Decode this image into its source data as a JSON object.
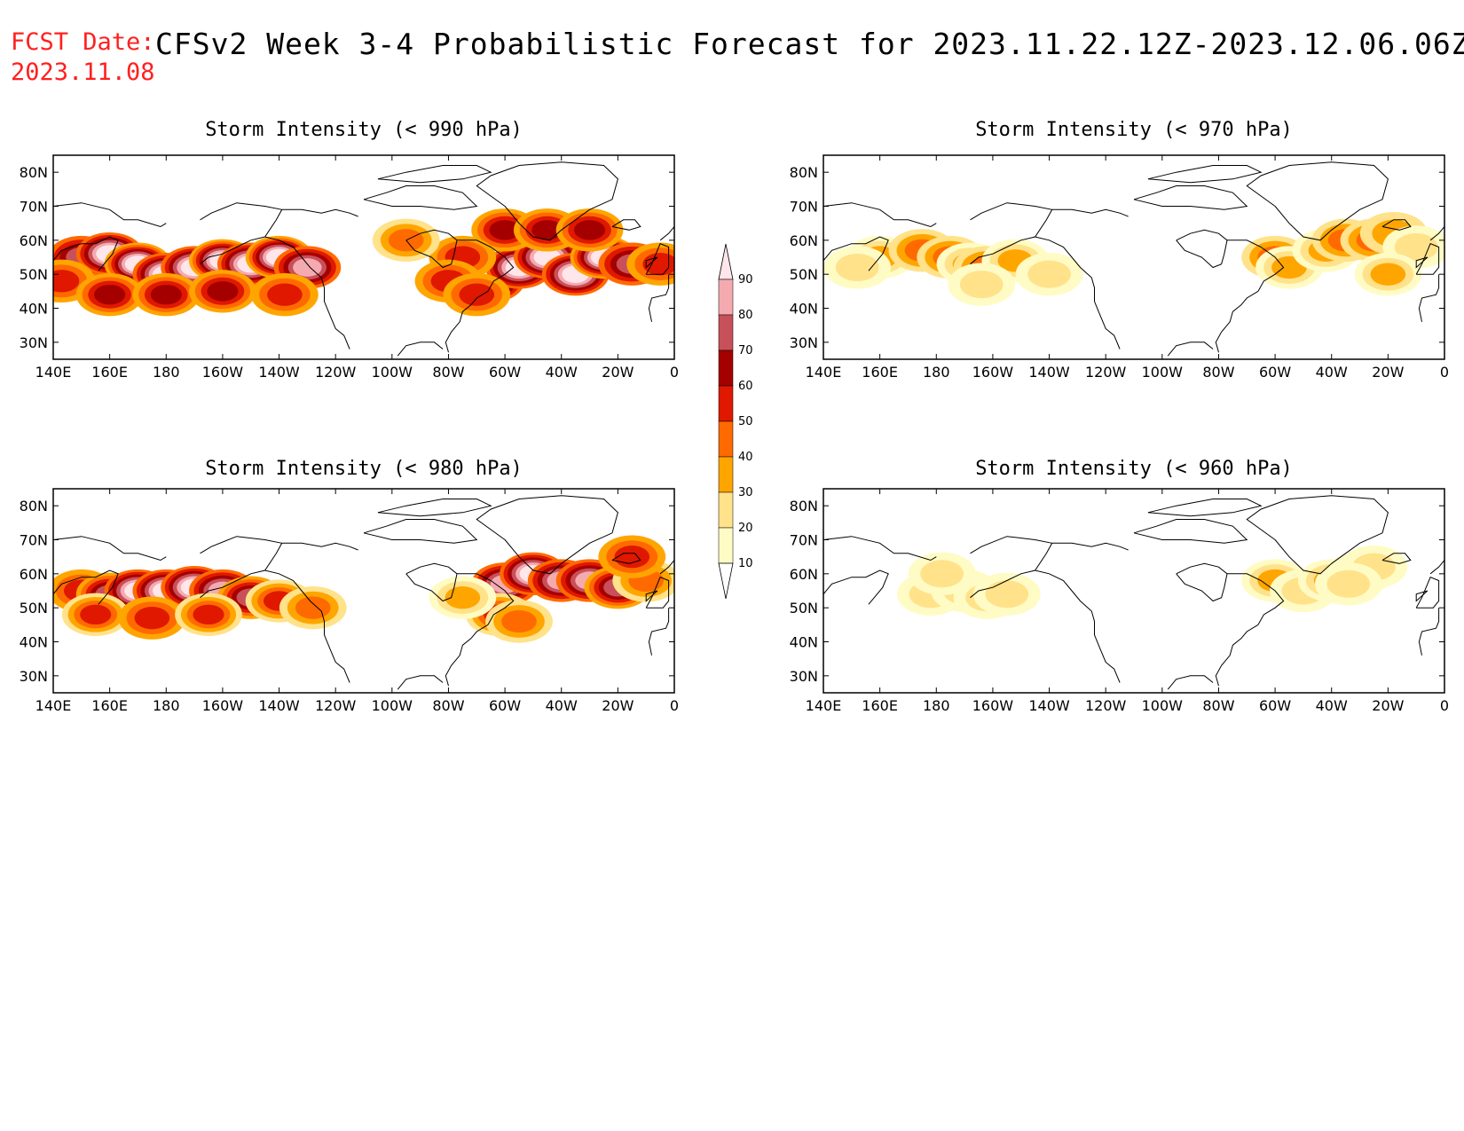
{
  "header": {
    "fcst_label": "FCST Date:",
    "fcst_date": "2023.11.08",
    "title": "CFSv2 Week 3-4 Probabilistic Forecast for 2023.11.22.12Z-2023.12.06.06Z"
  },
  "map_extent": {
    "lon": [
      140,
      360
    ],
    "lat": [
      25,
      85
    ]
  },
  "lon_ticks": [
    "140E",
    "160E",
    "180",
    "160W",
    "140W",
    "120W",
    "100W",
    "80W",
    "60W",
    "40W",
    "20W",
    "0"
  ],
  "lat_ticks": [
    "30N",
    "40N",
    "50N",
    "60N",
    "70N",
    "80N"
  ],
  "colorbar": {
    "levels": [
      "10",
      "20",
      "30",
      "40",
      "50",
      "60",
      "70",
      "80",
      "90"
    ],
    "colors": [
      "#fffbc4",
      "#ffe28a",
      "#ffa500",
      "#ff6a00",
      "#e01800",
      "#a50000",
      "#c8505a",
      "#f5aab0",
      "#ffe6ea"
    ]
  },
  "panels": [
    {
      "id": "p990",
      "title": "Storm Intensity (< 990 hPa)",
      "cells": [
        [
          150,
          55,
          6,
          3
        ],
        [
          160,
          56,
          8,
          3
        ],
        [
          170,
          53,
          8,
          2
        ],
        [
          180,
          50,
          8,
          3
        ],
        [
          190,
          52,
          8,
          3
        ],
        [
          200,
          54,
          8,
          2
        ],
        [
          210,
          53,
          8,
          3
        ],
        [
          220,
          55,
          8,
          2
        ],
        [
          230,
          52,
          7,
          3
        ],
        [
          143,
          48,
          4,
          2
        ],
        [
          160,
          44,
          5,
          2
        ],
        [
          180,
          44,
          5,
          2
        ],
        [
          200,
          45,
          5,
          2
        ],
        [
          222,
          44,
          4,
          2
        ],
        [
          295,
          48,
          8,
          3
        ],
        [
          305,
          52,
          8,
          3
        ],
        [
          315,
          55,
          8,
          3
        ],
        [
          325,
          50,
          8,
          3
        ],
        [
          335,
          55,
          8,
          2
        ],
        [
          345,
          53,
          6,
          3
        ],
        [
          355,
          53,
          4,
          2
        ],
        [
          300,
          63,
          5,
          2
        ],
        [
          315,
          63,
          5,
          2
        ],
        [
          330,
          63,
          5,
          2
        ],
        [
          285,
          55,
          4,
          2
        ],
        [
          280,
          48,
          4,
          2
        ],
        [
          265,
          60,
          3,
          1
        ],
        [
          290,
          44,
          4,
          2
        ]
      ]
    },
    {
      "id": "p970",
      "title": "Storm Intensity (< 970 hPa)",
      "cells": [
        [
          160,
          55,
          2,
          0
        ],
        [
          175,
          57,
          3,
          1
        ],
        [
          185,
          55,
          3,
          1
        ],
        [
          192,
          53,
          2,
          0
        ],
        [
          198,
          52,
          3,
          1
        ],
        [
          208,
          54,
          2,
          0
        ],
        [
          220,
          50,
          1,
          0
        ],
        [
          152,
          52,
          1,
          0
        ],
        [
          196,
          47,
          1,
          0
        ],
        [
          300,
          55,
          3,
          1
        ],
        [
          305,
          52,
          2,
          0
        ],
        [
          318,
          57,
          2,
          0
        ],
        [
          325,
          60,
          3,
          1
        ],
        [
          335,
          60,
          3,
          1
        ],
        [
          342,
          62,
          2,
          1
        ],
        [
          350,
          58,
          1,
          0
        ],
        [
          340,
          50,
          2,
          0
        ]
      ]
    },
    {
      "id": "p980",
      "title": "Storm Intensity (< 980 hPa)",
      "cells": [
        [
          150,
          55,
          4,
          2
        ],
        [
          160,
          54,
          6,
          2
        ],
        [
          170,
          55,
          8,
          3
        ],
        [
          180,
          55,
          8,
          3
        ],
        [
          190,
          56,
          8,
          3
        ],
        [
          200,
          55,
          7,
          3
        ],
        [
          210,
          53,
          6,
          2
        ],
        [
          220,
          52,
          4,
          1
        ],
        [
          232,
          50,
          3,
          1
        ],
        [
          155,
          48,
          4,
          1
        ],
        [
          175,
          47,
          4,
          2
        ],
        [
          195,
          48,
          4,
          1
        ],
        [
          300,
          57,
          7,
          3
        ],
        [
          310,
          60,
          8,
          3
        ],
        [
          320,
          58,
          7,
          3
        ],
        [
          330,
          58,
          7,
          3
        ],
        [
          340,
          56,
          6,
          2
        ],
        [
          350,
          58,
          3,
          1
        ],
        [
          345,
          65,
          4,
          2
        ],
        [
          298,
          48,
          4,
          1
        ],
        [
          305,
          46,
          3,
          1
        ],
        [
          285,
          53,
          2,
          0
        ]
      ]
    },
    {
      "id": "p960",
      "title": "Storm Intensity (< 960 hPa)",
      "cells": [
        [
          178,
          54,
          1,
          0
        ],
        [
          190,
          55,
          1,
          0
        ],
        [
          198,
          53,
          1,
          0
        ],
        [
          205,
          54,
          1,
          0
        ],
        [
          182,
          60,
          1,
          0
        ],
        [
          300,
          58,
          2,
          0
        ],
        [
          310,
          55,
          1,
          0
        ],
        [
          320,
          58,
          2,
          0
        ],
        [
          330,
          60,
          1,
          0
        ],
        [
          335,
          62,
          1,
          0
        ],
        [
          326,
          57,
          1,
          0
        ]
      ]
    }
  ]
}
